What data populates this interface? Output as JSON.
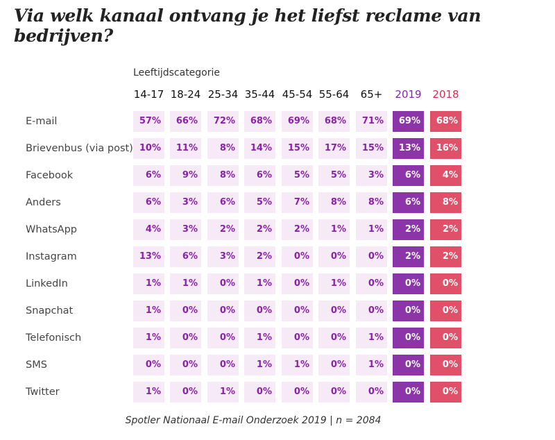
{
  "chart_data": {
    "type": "table",
    "title": "Via welk kanaal ontvang je het liefst reclame van bedrijven?",
    "group_label": "Leeftijdscategorie",
    "columns": [
      "14-17",
      "18-24",
      "25-34",
      "35-44",
      "45-54",
      "55-64",
      "65+",
      "2019",
      "2018"
    ],
    "rows": [
      {
        "label": "E-mail",
        "values": [
          "57%",
          "66%",
          "72%",
          "68%",
          "69%",
          "68%",
          "71%",
          "69%",
          "68%"
        ]
      },
      {
        "label": "Brievenbus (via post)",
        "values": [
          "10%",
          "11%",
          "8%",
          "14%",
          "15%",
          "17%",
          "15%",
          "13%",
          "16%"
        ]
      },
      {
        "label": "Facebook",
        "values": [
          "6%",
          "9%",
          "8%",
          "6%",
          "5%",
          "5%",
          "3%",
          "6%",
          "4%"
        ]
      },
      {
        "label": "Anders",
        "values": [
          "6%",
          "3%",
          "6%",
          "5%",
          "7%",
          "8%",
          "8%",
          "6%",
          "8%"
        ]
      },
      {
        "label": "WhatsApp",
        "values": [
          "4%",
          "3%",
          "2%",
          "2%",
          "2%",
          "1%",
          "1%",
          "2%",
          "2%"
        ]
      },
      {
        "label": "Instagram",
        "values": [
          "13%",
          "6%",
          "3%",
          "2%",
          "0%",
          "0%",
          "0%",
          "2%",
          "2%"
        ]
      },
      {
        "label": "LinkedIn",
        "values": [
          "1%",
          "1%",
          "0%",
          "1%",
          "0%",
          "1%",
          "0%",
          "0%",
          "0%"
        ]
      },
      {
        "label": "Snapchat",
        "values": [
          "1%",
          "0%",
          "0%",
          "0%",
          "0%",
          "0%",
          "0%",
          "0%",
          "0%"
        ]
      },
      {
        "label": "Telefonisch",
        "values": [
          "1%",
          "0%",
          "0%",
          "1%",
          "0%",
          "0%",
          "1%",
          "0%",
          "0%"
        ]
      },
      {
        "label": "SMS",
        "values": [
          "0%",
          "0%",
          "0%",
          "1%",
          "1%",
          "0%",
          "1%",
          "0%",
          "0%"
        ]
      },
      {
        "label": "Twitter",
        "values": [
          "1%",
          "0%",
          "1%",
          "0%",
          "0%",
          "0%",
          "0%",
          "0%",
          "0%"
        ]
      }
    ],
    "footer": "Spotler Nationaal E-mail Onderzoek 2019 | n = 2084",
    "colors": {
      "age_cell_bg": "#f6eaf7",
      "age_text": "#8a22a8",
      "col_2019": "#8b35a8",
      "col_2018": "#e05068",
      "header_2019": "#8a22a8",
      "header_2018": "#e0294a"
    }
  }
}
